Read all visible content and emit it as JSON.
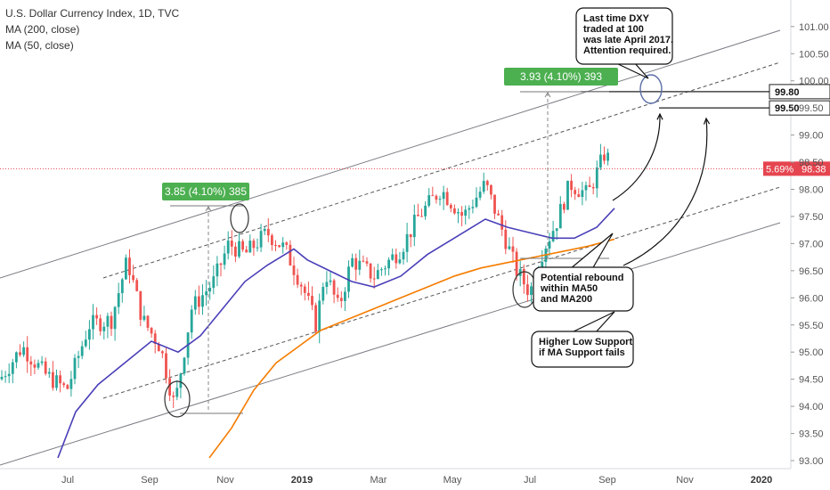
{
  "header": {
    "title": "U.S. Dollar Currency Index, 1D, TVC",
    "indicators": [
      "MA (200, close)",
      "MA (50, close)"
    ]
  },
  "chart_data": {
    "type": "candlestick",
    "y_axis": {
      "ticks": [
        93.0,
        93.5,
        94.0,
        94.5,
        95.0,
        95.5,
        96.0,
        96.5,
        97.0,
        97.5,
        98.0,
        98.5,
        99.0,
        99.5,
        100.0,
        100.5,
        101.0
      ],
      "range": [
        92.85,
        101.25
      ]
    },
    "x_axis": {
      "ticks": [
        "Jul",
        "Sep",
        "Nov",
        "2019",
        "Mar",
        "May",
        "Jul",
        "Sep",
        "Nov",
        "2020"
      ]
    },
    "price_label": {
      "change": "5.69%",
      "price": "98.38",
      "color": "#e5454f"
    },
    "level_labels": [
      {
        "text": "99.80",
        "value": 99.8
      },
      {
        "text": "99.50",
        "value": 99.5
      }
    ],
    "measure_labels": [
      {
        "text": "3.85 (4.10%) 385"
      },
      {
        "text": "3.93 (4.10%) 393"
      }
    ],
    "notes": [
      {
        "id": "last-time",
        "lines": [
          "Last time DXY",
          "traded at 100",
          "was late April 2017.",
          "Attention required."
        ]
      },
      {
        "id": "rebound",
        "lines": [
          "Potential rebound",
          "within MA50",
          "and MA200"
        ]
      },
      {
        "id": "higher-low",
        "lines": [
          "Higher Low Support",
          "if MA Support fails"
        ]
      }
    ],
    "colors": {
      "up": "#26a69a",
      "down": "#ef5350",
      "ma50": "#4a3fb8",
      "ma200": "#f57c00",
      "measure": "#4caf50",
      "dark_label": "#131722"
    }
  }
}
